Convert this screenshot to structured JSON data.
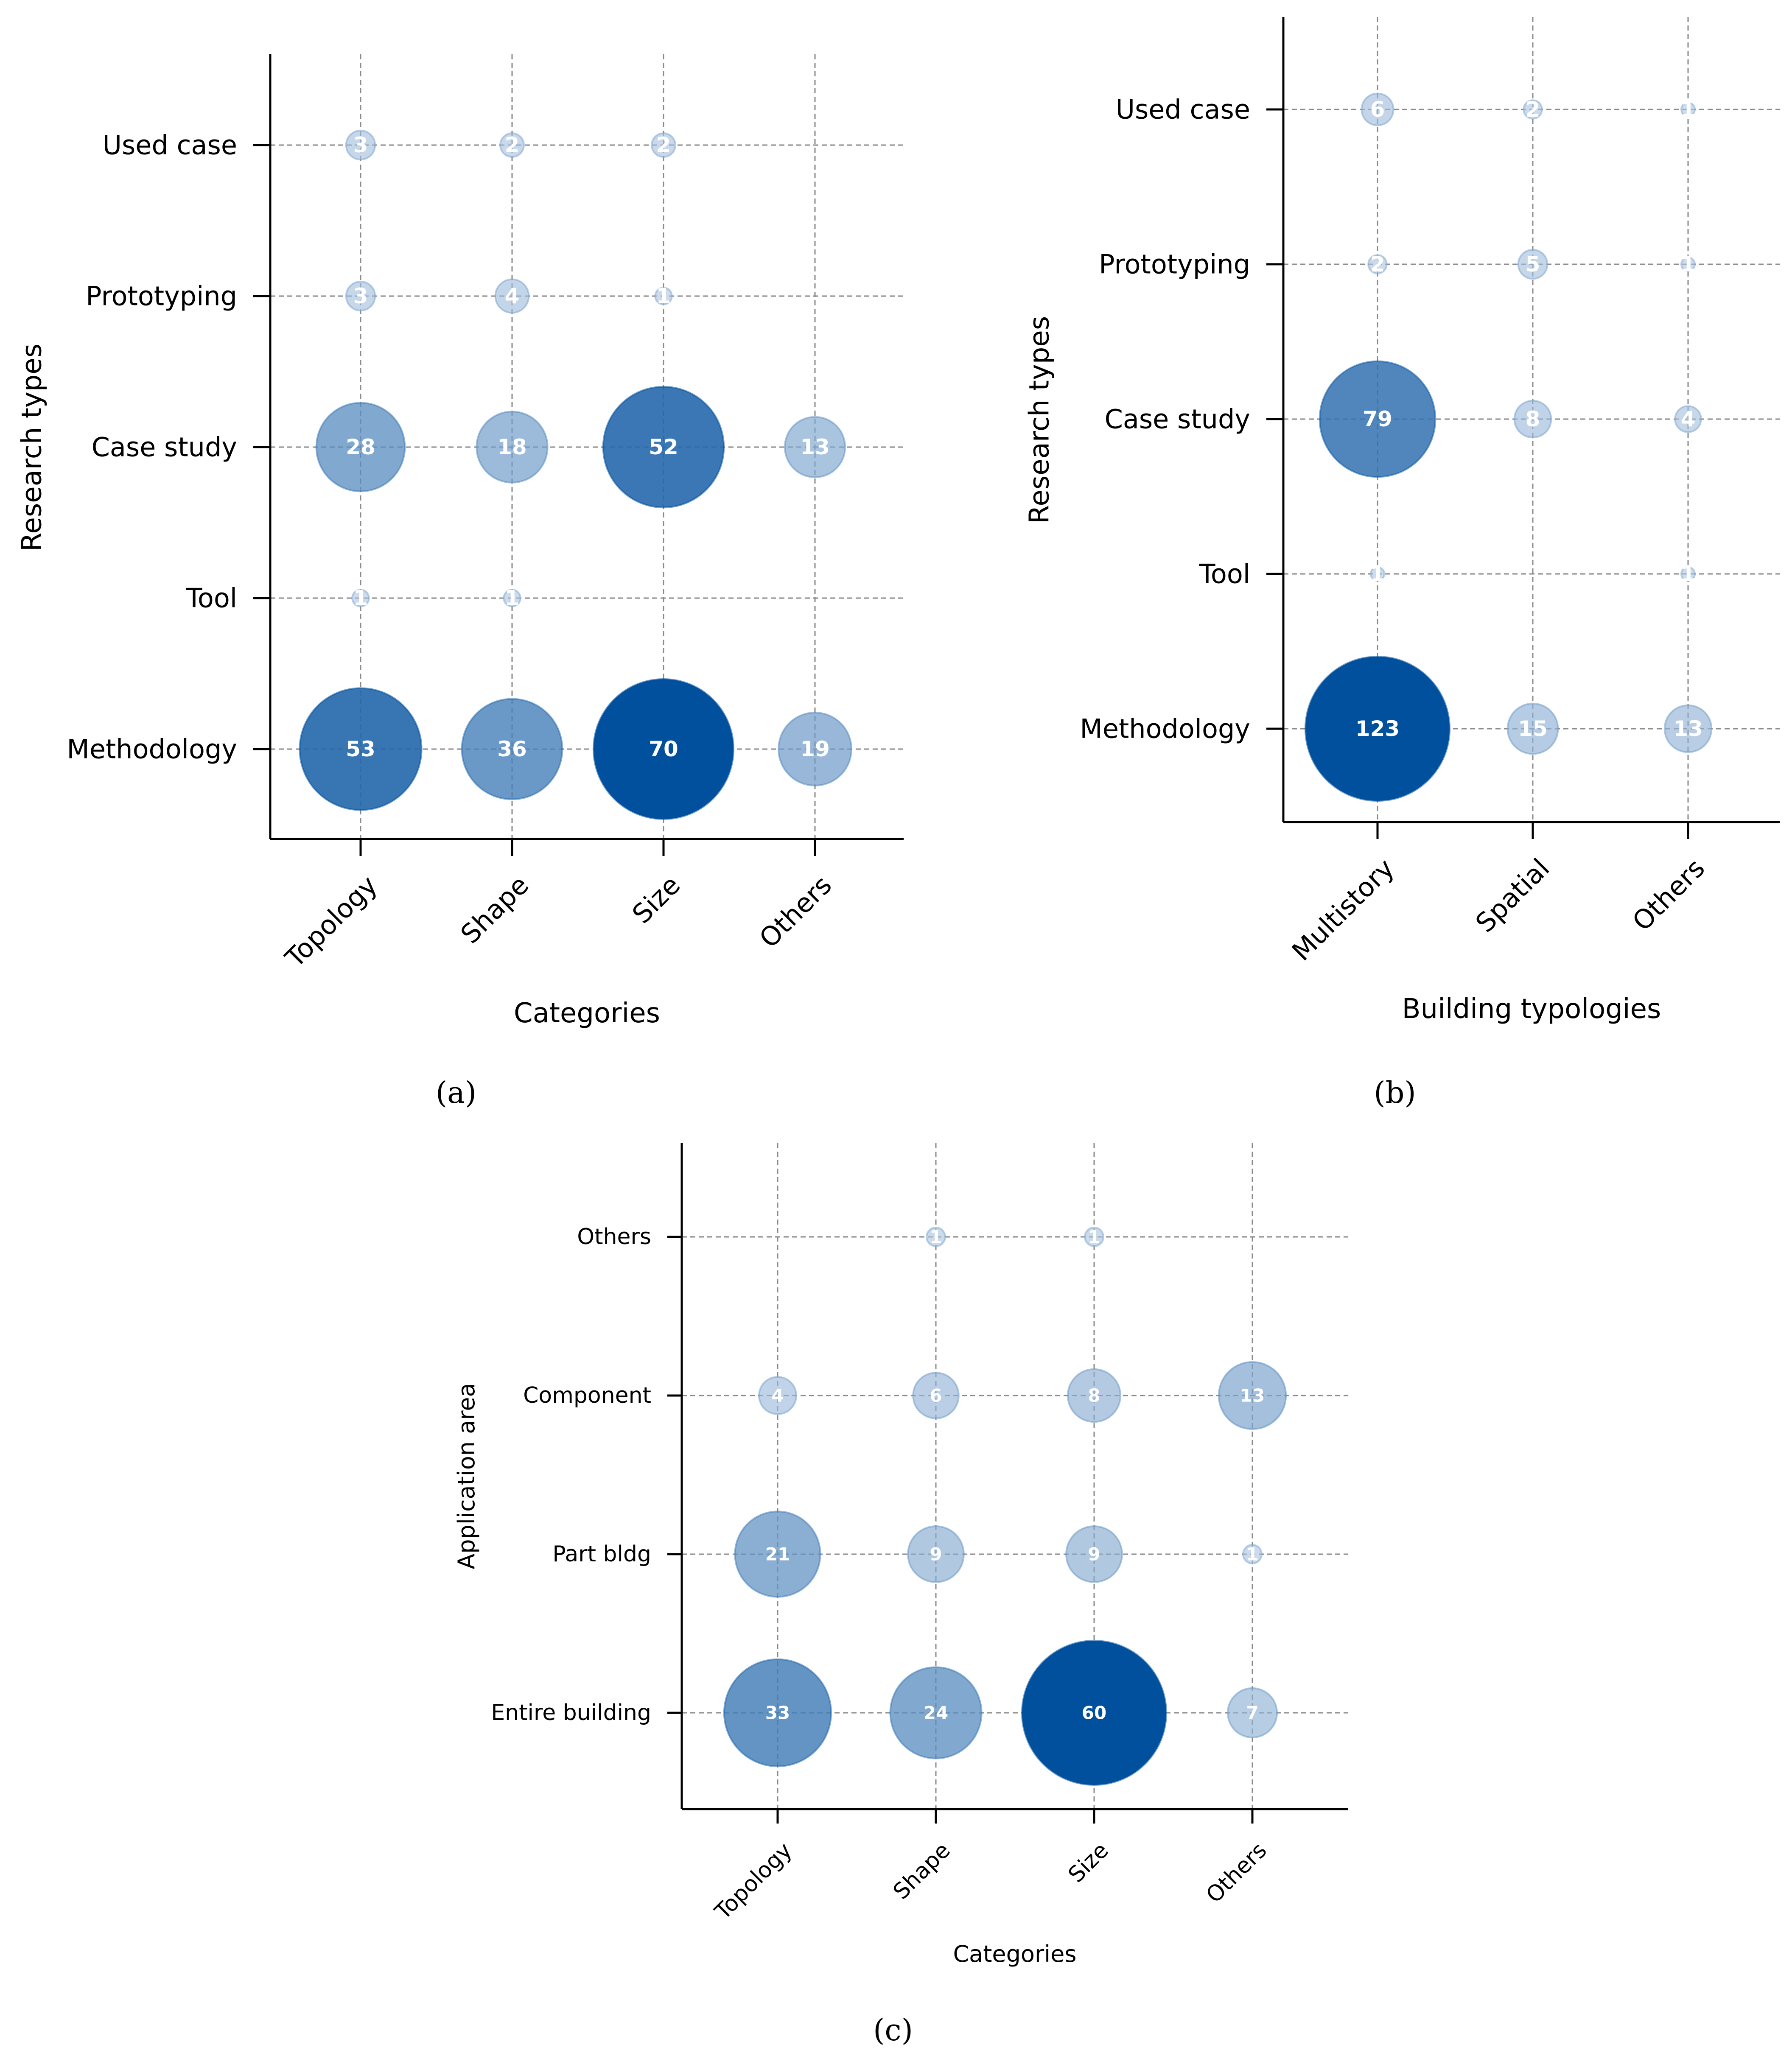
{
  "chart_data": [
    {
      "id": "a",
      "type": "bubble",
      "caption": "(a)",
      "xlabel": "Categories",
      "ylabel": "Research types",
      "categories": [
        "Topology",
        "Shape",
        "Size",
        "Others"
      ],
      "rows": [
        "Methodology",
        "Tool",
        "Case study",
        "Prototyping",
        "Used case"
      ],
      "cells": [
        {
          "row": "Used case",
          "col": "Topology",
          "value": 3
        },
        {
          "row": "Used case",
          "col": "Shape",
          "value": 2
        },
        {
          "row": "Used case",
          "col": "Size",
          "value": 2
        },
        {
          "row": "Prototyping",
          "col": "Topology",
          "value": 3
        },
        {
          "row": "Prototyping",
          "col": "Shape",
          "value": 4
        },
        {
          "row": "Prototyping",
          "col": "Size",
          "value": 1
        },
        {
          "row": "Case study",
          "col": "Topology",
          "value": 28
        },
        {
          "row": "Case study",
          "col": "Shape",
          "value": 18
        },
        {
          "row": "Case study",
          "col": "Size",
          "value": 52
        },
        {
          "row": "Case study",
          "col": "Others",
          "value": 13
        },
        {
          "row": "Tool",
          "col": "Topology",
          "value": 1
        },
        {
          "row": "Tool",
          "col": "Shape",
          "value": 1
        },
        {
          "row": "Methodology",
          "col": "Topology",
          "value": 53
        },
        {
          "row": "Methodology",
          "col": "Shape",
          "value": 36
        },
        {
          "row": "Methodology",
          "col": "Size",
          "value": 70
        },
        {
          "row": "Methodology",
          "col": "Others",
          "value": 19
        }
      ]
    },
    {
      "id": "b",
      "type": "bubble",
      "caption": "(b)",
      "xlabel": "Building typologies",
      "ylabel": "Research types",
      "categories": [
        "Multistory",
        "Spatial",
        "Others"
      ],
      "rows": [
        "Methodology",
        "Tool",
        "Case study",
        "Prototyping",
        "Used case"
      ],
      "cells": [
        {
          "row": "Used case",
          "col": "Multistory",
          "value": 6
        },
        {
          "row": "Used case",
          "col": "Spatial",
          "value": 2
        },
        {
          "row": "Used case",
          "col": "Others",
          "value": 1
        },
        {
          "row": "Prototyping",
          "col": "Multistory",
          "value": 2
        },
        {
          "row": "Prototyping",
          "col": "Spatial",
          "value": 5
        },
        {
          "row": "Prototyping",
          "col": "Others",
          "value": 1
        },
        {
          "row": "Case study",
          "col": "Multistory",
          "value": 79
        },
        {
          "row": "Case study",
          "col": "Spatial",
          "value": 8
        },
        {
          "row": "Case study",
          "col": "Others",
          "value": 4
        },
        {
          "row": "Tool",
          "col": "Multistory",
          "value": 1
        },
        {
          "row": "Tool",
          "col": "Others",
          "value": 1
        },
        {
          "row": "Methodology",
          "col": "Multistory",
          "value": 123
        },
        {
          "row": "Methodology",
          "col": "Spatial",
          "value": 15
        },
        {
          "row": "Methodology",
          "col": "Others",
          "value": 13
        }
      ]
    },
    {
      "id": "c",
      "type": "bubble",
      "caption": "(c)",
      "xlabel": "Categories",
      "ylabel": "Application area",
      "categories": [
        "Topology",
        "Shape",
        "Size",
        "Others"
      ],
      "rows": [
        "Entire building",
        "Part bldg",
        "Component",
        "Others"
      ],
      "cells": [
        {
          "row": "Others",
          "col": "Shape",
          "value": 1
        },
        {
          "row": "Others",
          "col": "Size",
          "value": 1
        },
        {
          "row": "Component",
          "col": "Topology",
          "value": 4
        },
        {
          "row": "Component",
          "col": "Shape",
          "value": 6
        },
        {
          "row": "Component",
          "col": "Size",
          "value": 8
        },
        {
          "row": "Component",
          "col": "Others",
          "value": 13
        },
        {
          "row": "Part bldg",
          "col": "Topology",
          "value": 21
        },
        {
          "row": "Part bldg",
          "col": "Shape",
          "value": 9
        },
        {
          "row": "Part bldg",
          "col": "Size",
          "value": 9
        },
        {
          "row": "Part bldg",
          "col": "Others",
          "value": 1
        },
        {
          "row": "Entire building",
          "col": "Topology",
          "value": 33
        },
        {
          "row": "Entire building",
          "col": "Shape",
          "value": 24
        },
        {
          "row": "Entire building",
          "col": "Size",
          "value": 60
        },
        {
          "row": "Entire building",
          "col": "Others",
          "value": 7
        }
      ]
    }
  ],
  "colors": {
    "bubble_light": "#b3c9e3",
    "bubble_dark": "#00509e",
    "bubble_label": "#ffffff",
    "grid": "#8a8a8a",
    "axis": "#000000"
  }
}
